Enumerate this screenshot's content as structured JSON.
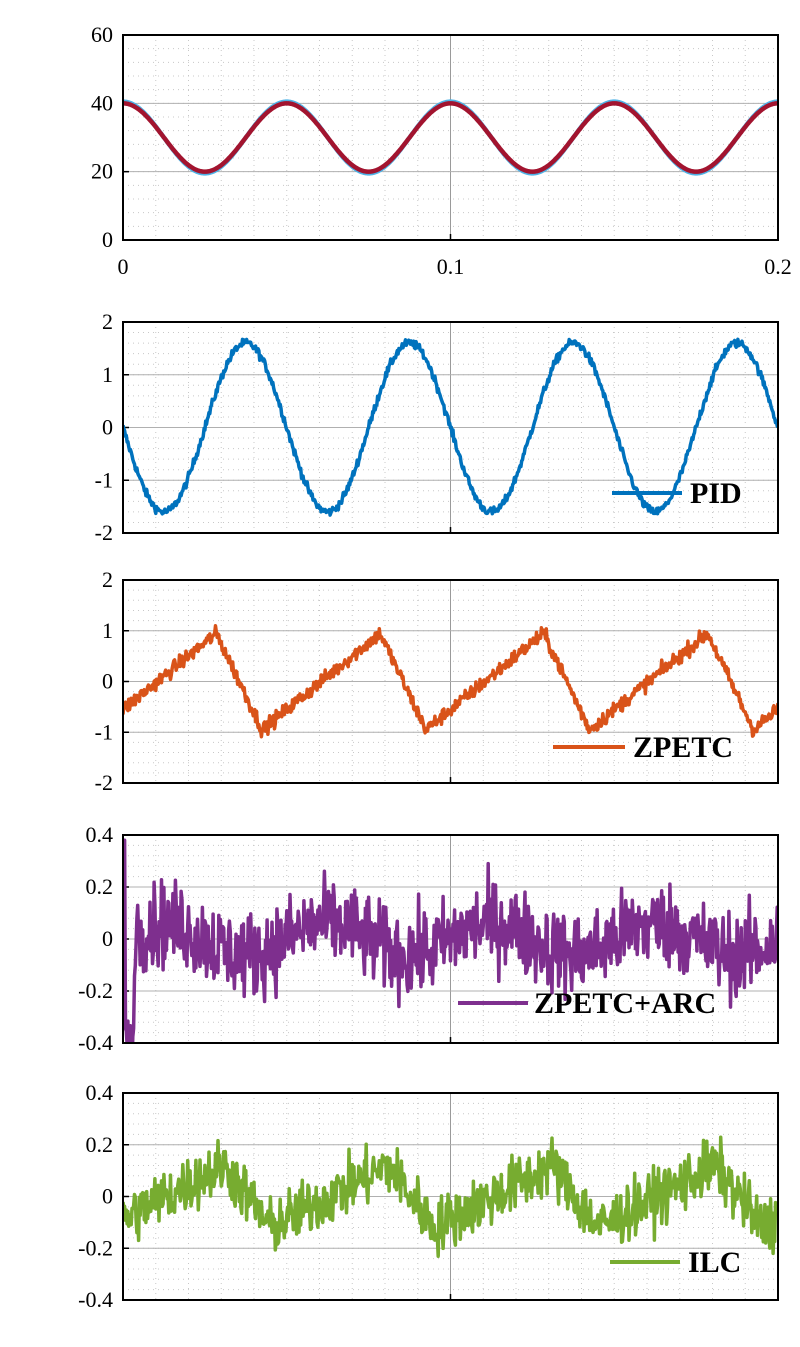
{
  "chart_data": [
    {
      "type": "line",
      "xlim": [
        0,
        0.2
      ],
      "ylim": [
        0,
        60
      ],
      "x_ticks": [
        0,
        0.1,
        0.2
      ],
      "x_tick_labels": [
        "0",
        "0.1",
        "0.2"
      ],
      "y_ticks": [
        0,
        20,
        40,
        60
      ],
      "y_tick_labels": [
        "0",
        "20",
        "40",
        "60"
      ],
      "ylabel": "",
      "grid": true,
      "series": [
        {
          "name": "",
          "color": "#4FB3E6",
          "frequency_hz": 20,
          "center": 30,
          "amplitude": 10.5
        },
        {
          "name": "",
          "color": "#A2142F",
          "frequency_hz": 20,
          "center": 30,
          "amplitude": 10
        }
      ]
    },
    {
      "type": "line",
      "xlim": [
        0,
        0.2
      ],
      "ylim": [
        -2,
        2
      ],
      "y_ticks": [
        -2,
        -1,
        0,
        1,
        2
      ],
      "y_tick_labels": [
        "-2",
        "-1",
        "0",
        "1",
        "2"
      ],
      "ylabel": "",
      "grid": true,
      "legend_location": "bottom-right",
      "series": [
        {
          "name": "PID",
          "color": "#0072BD",
          "frequency_hz": 20,
          "amplitude": 1.6,
          "noise": 0.04
        }
      ]
    },
    {
      "type": "line",
      "xlim": [
        0,
        0.2
      ],
      "ylim": [
        -2,
        2
      ],
      "y_ticks": [
        -2,
        -1,
        0,
        1,
        2
      ],
      "y_tick_labels": [
        "-2",
        "-1",
        "0",
        "1",
        "2"
      ],
      "ylabel": "",
      "grid": true,
      "legend_location": "bottom-right",
      "series": [
        {
          "name": "ZPETC",
          "color": "#D95319",
          "frequency_hz": 20,
          "amplitude": 0.95,
          "noise": 0.12
        }
      ]
    },
    {
      "type": "line",
      "xlim": [
        0,
        0.2
      ],
      "ylim": [
        -0.4,
        0.4
      ],
      "y_ticks": [
        -0.4,
        -0.2,
        0,
        0.2,
        0.4
      ],
      "y_tick_labels": [
        "-0.4",
        "-0.2",
        "0",
        "0.2",
        "0.4"
      ],
      "ylabel": "",
      "grid": true,
      "legend_location": "bottom-right",
      "series": [
        {
          "name": "ZPETC+ARC",
          "color": "#7E2F8E",
          "frequency_hz": 20,
          "amplitude": 0.06,
          "noise": 0.18
        }
      ]
    },
    {
      "type": "line",
      "xlim": [
        0,
        0.2
      ],
      "ylim": [
        -0.4,
        0.4
      ],
      "y_ticks": [
        -0.4,
        -0.2,
        0,
        0.2,
        0.4
      ],
      "y_tick_labels": [
        "-0.4",
        "-0.2",
        "0",
        "0.2",
        "0.4"
      ],
      "ylabel": "",
      "xlabel": "",
      "grid": true,
      "legend_location": "bottom-right",
      "series": [
        {
          "name": "ILC",
          "color": "#77AC30",
          "frequency_hz": 20,
          "amplitude": 0.12,
          "noise": 0.12
        }
      ]
    }
  ]
}
